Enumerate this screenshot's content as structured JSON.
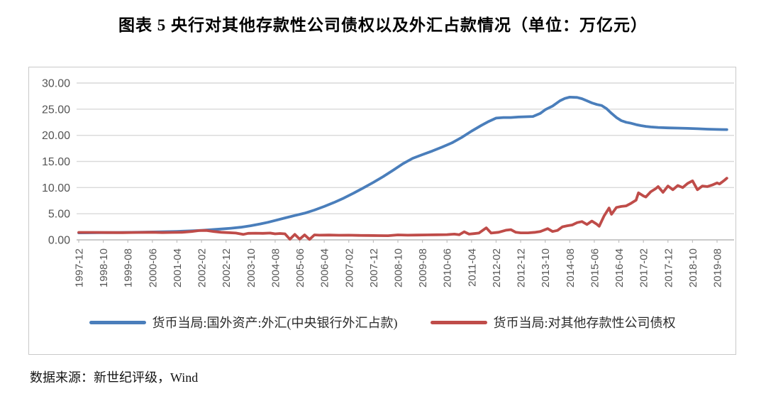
{
  "page": {
    "source_note": "数据来源：新世纪评级，Wind"
  },
  "chart_data": {
    "type": "line",
    "title": "图表 5  央行对其他存款性公司债权以及外汇占款情况（单位：万亿元）",
    "unit": "万亿元",
    "grid": "horizontal",
    "legend_position": "bottom",
    "ylim": [
      0,
      30
    ],
    "yticks": [
      0,
      5,
      10,
      15,
      20,
      25,
      30
    ],
    "ytick_labels": [
      "0.00",
      "5.00",
      "10.00",
      "15.00",
      "20.00",
      "25.00",
      "30.00"
    ],
    "x_axis": {
      "unit": "year-month",
      "tick_step_months": 10,
      "data_month_span": [
        0,
        264
      ],
      "tick_labels": [
        "1997-12",
        "1998-10",
        "1999-08",
        "2000-06",
        "2001-04",
        "2002-02",
        "2002-12",
        "2003-10",
        "2004-08",
        "2005-06",
        "2006-04",
        "2007-02",
        "2007-12",
        "2008-10",
        "2009-08",
        "2010-06",
        "2011-04",
        "2012-02",
        "2012-12",
        "2013-10",
        "2014-08",
        "2015-06",
        "2016-04",
        "2017-02",
        "2017-12",
        "2018-10",
        "2019-08"
      ]
    },
    "series": [
      {
        "name": "货币当局:国外资产:外汇(中央银行外汇占款)",
        "color": "#4a7ebb",
        "points": [
          [
            0,
            1.35
          ],
          [
            8,
            1.38
          ],
          [
            16,
            1.4
          ],
          [
            24,
            1.45
          ],
          [
            32,
            1.52
          ],
          [
            40,
            1.62
          ],
          [
            46,
            1.72
          ],
          [
            50,
            1.82
          ],
          [
            54,
            1.95
          ],
          [
            58,
            2.08
          ],
          [
            62,
            2.22
          ],
          [
            66,
            2.42
          ],
          [
            70,
            2.7
          ],
          [
            74,
            3.05
          ],
          [
            77,
            3.35
          ],
          [
            80,
            3.7
          ],
          [
            84,
            4.2
          ],
          [
            88,
            4.65
          ],
          [
            92,
            5.1
          ],
          [
            96,
            5.7
          ],
          [
            100,
            6.4
          ],
          [
            104,
            7.15
          ],
          [
            108,
            8.0
          ],
          [
            112,
            8.95
          ],
          [
            116,
            9.95
          ],
          [
            120,
            11.0
          ],
          [
            124,
            12.1
          ],
          [
            128,
            13.3
          ],
          [
            132,
            14.55
          ],
          [
            136,
            15.6
          ],
          [
            140,
            16.3
          ],
          [
            144,
            17.0
          ],
          [
            148,
            17.75
          ],
          [
            152,
            18.55
          ],
          [
            156,
            19.6
          ],
          [
            160,
            20.8
          ],
          [
            164,
            21.9
          ],
          [
            167,
            22.65
          ],
          [
            170,
            23.3
          ],
          [
            173,
            23.4
          ],
          [
            176,
            23.4
          ],
          [
            179,
            23.5
          ],
          [
            182,
            23.55
          ],
          [
            185,
            23.6
          ],
          [
            188,
            24.2
          ],
          [
            190,
            24.9
          ],
          [
            193,
            25.6
          ],
          [
            196,
            26.6
          ],
          [
            198,
            27.05
          ],
          [
            200,
            27.3
          ],
          [
            203,
            27.25
          ],
          [
            205,
            27.0
          ],
          [
            207,
            26.6
          ],
          [
            209,
            26.2
          ],
          [
            211,
            25.9
          ],
          [
            213,
            25.7
          ],
          [
            215,
            25.1
          ],
          [
            217,
            24.2
          ],
          [
            219,
            23.4
          ],
          [
            221,
            22.8
          ],
          [
            223,
            22.5
          ],
          [
            225,
            22.3
          ],
          [
            227,
            22.05
          ],
          [
            229,
            21.85
          ],
          [
            231,
            21.7
          ],
          [
            233,
            21.6
          ],
          [
            236,
            21.5
          ],
          [
            240,
            21.42
          ],
          [
            244,
            21.38
          ],
          [
            248,
            21.32
          ],
          [
            252,
            21.26
          ],
          [
            256,
            21.18
          ],
          [
            260,
            21.12
          ],
          [
            264,
            21.1
          ]
        ]
      },
      {
        "name": "货币当局:对其他存款性公司债权",
        "color": "#bf4c49",
        "points": [
          [
            0,
            1.42
          ],
          [
            6,
            1.42
          ],
          [
            12,
            1.4
          ],
          [
            18,
            1.38
          ],
          [
            24,
            1.42
          ],
          [
            30,
            1.45
          ],
          [
            34,
            1.4
          ],
          [
            38,
            1.42
          ],
          [
            42,
            1.45
          ],
          [
            46,
            1.6
          ],
          [
            49,
            1.78
          ],
          [
            52,
            1.8
          ],
          [
            55,
            1.6
          ],
          [
            58,
            1.45
          ],
          [
            61,
            1.38
          ],
          [
            64,
            1.3
          ],
          [
            67,
            1.05
          ],
          [
            69,
            1.25
          ],
          [
            72,
            1.28
          ],
          [
            75,
            1.25
          ],
          [
            78,
            1.3
          ],
          [
            80,
            1.15
          ],
          [
            82,
            1.22
          ],
          [
            84,
            1.15
          ],
          [
            86,
            0.12
          ],
          [
            88,
            1.05
          ],
          [
            90,
            0.15
          ],
          [
            92,
            0.95
          ],
          [
            94,
            0.1
          ],
          [
            96,
            0.95
          ],
          [
            98,
            0.9
          ],
          [
            102,
            0.92
          ],
          [
            106,
            0.88
          ],
          [
            110,
            0.9
          ],
          [
            114,
            0.86
          ],
          [
            118,
            0.84
          ],
          [
            122,
            0.82
          ],
          [
            126,
            0.8
          ],
          [
            130,
            0.95
          ],
          [
            134,
            0.9
          ],
          [
            138,
            0.92
          ],
          [
            142,
            0.95
          ],
          [
            146,
            0.98
          ],
          [
            150,
            1.0
          ],
          [
            153,
            1.1
          ],
          [
            155,
            0.98
          ],
          [
            157,
            1.55
          ],
          [
            159,
            1.1
          ],
          [
            161,
            1.2
          ],
          [
            163,
            1.3
          ],
          [
            166,
            2.3
          ],
          [
            168,
            1.3
          ],
          [
            171,
            1.45
          ],
          [
            174,
            1.85
          ],
          [
            176,
            1.95
          ],
          [
            178,
            1.45
          ],
          [
            180,
            1.35
          ],
          [
            183,
            1.35
          ],
          [
            186,
            1.45
          ],
          [
            188,
            1.6
          ],
          [
            191,
            2.15
          ],
          [
            193,
            1.6
          ],
          [
            195,
            1.8
          ],
          [
            197,
            2.5
          ],
          [
            199,
            2.7
          ],
          [
            201,
            2.85
          ],
          [
            203,
            3.3
          ],
          [
            205,
            3.5
          ],
          [
            207,
            2.95
          ],
          [
            209,
            3.6
          ],
          [
            211,
            3.0
          ],
          [
            212,
            2.6
          ],
          [
            214,
            4.6
          ],
          [
            216,
            6.1
          ],
          [
            217,
            4.9
          ],
          [
            219,
            6.2
          ],
          [
            221,
            6.4
          ],
          [
            223,
            6.5
          ],
          [
            225,
            7.0
          ],
          [
            227,
            7.6
          ],
          [
            228,
            9.0
          ],
          [
            230,
            8.4
          ],
          [
            231,
            8.2
          ],
          [
            233,
            9.2
          ],
          [
            235,
            9.8
          ],
          [
            236,
            10.2
          ],
          [
            238,
            9.1
          ],
          [
            240,
            10.3
          ],
          [
            242,
            9.6
          ],
          [
            244,
            10.4
          ],
          [
            246,
            10.0
          ],
          [
            248,
            10.8
          ],
          [
            250,
            11.3
          ],
          [
            252,
            9.6
          ],
          [
            254,
            10.3
          ],
          [
            256,
            10.2
          ],
          [
            258,
            10.5
          ],
          [
            260,
            10.9
          ],
          [
            261,
            10.7
          ],
          [
            263,
            11.4
          ],
          [
            264,
            11.8
          ]
        ]
      }
    ]
  }
}
